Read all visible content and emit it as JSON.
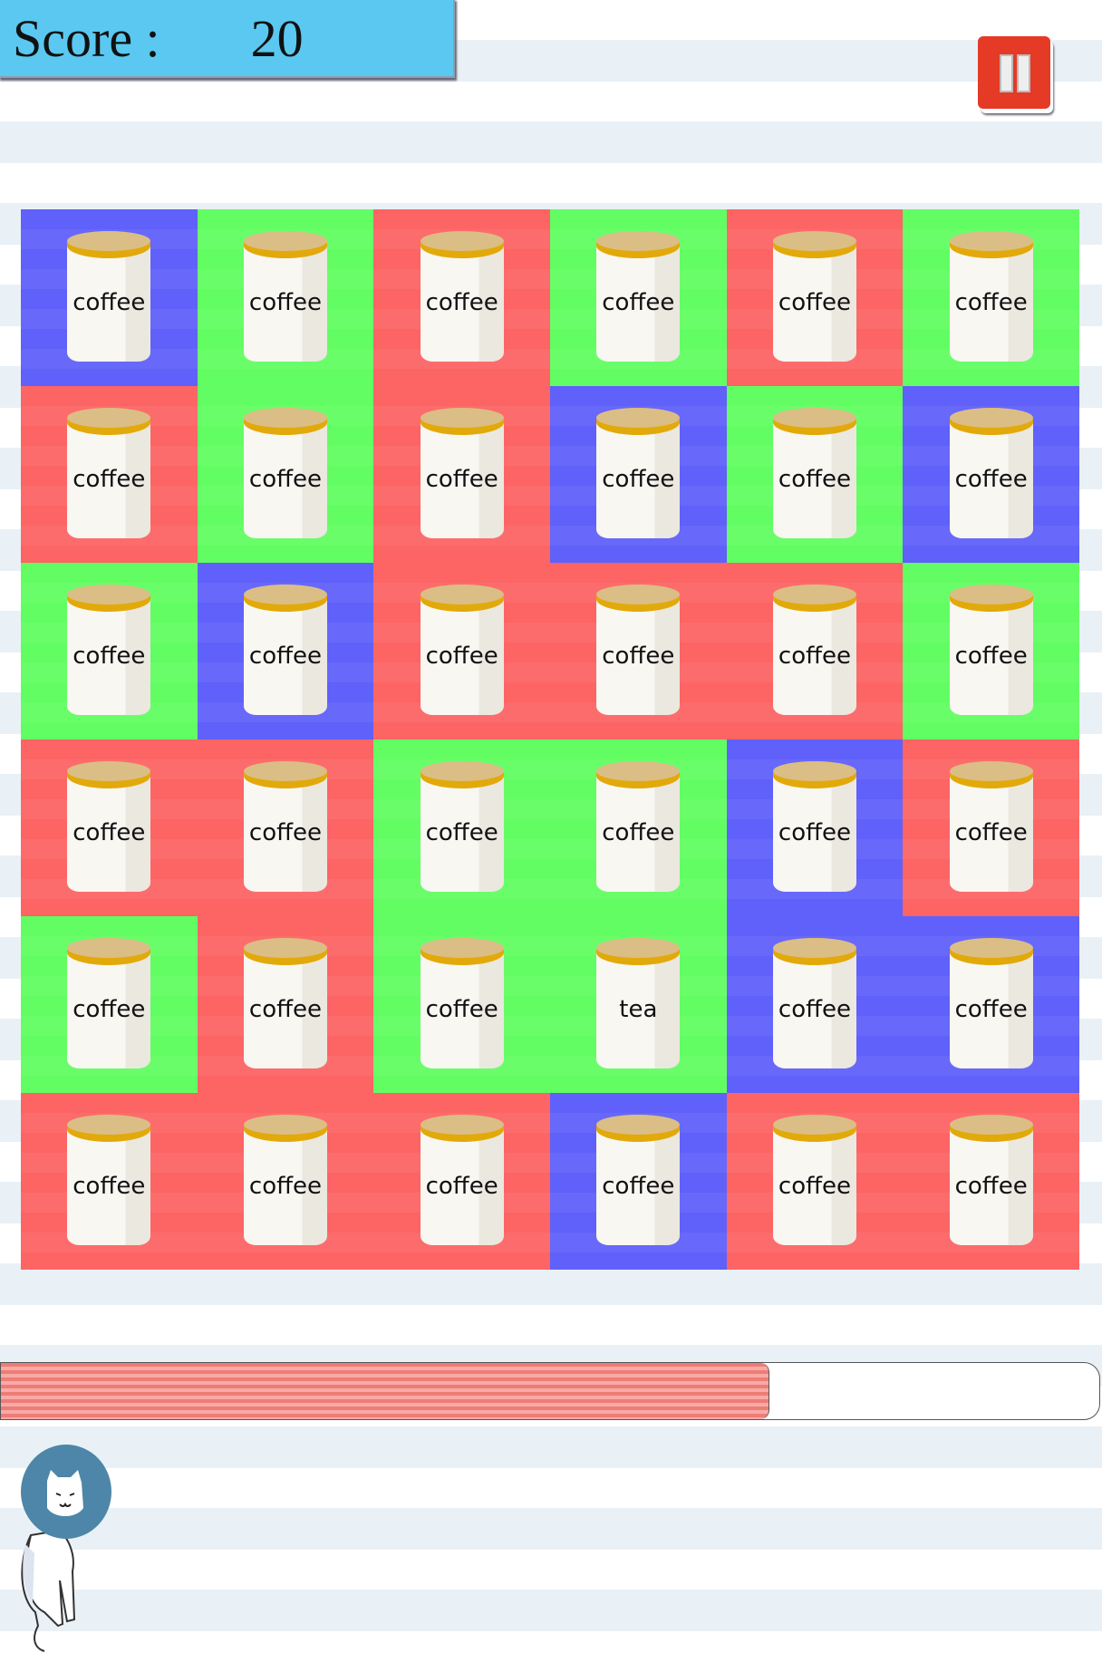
{
  "score": {
    "label": "Score :",
    "value": "20"
  },
  "pause_button": {
    "icon": "pause-icon"
  },
  "colors": {
    "blue": "#6060fa",
    "green": "#62fd62",
    "red": "#fd6464"
  },
  "board": [
    [
      {
        "c": "blue",
        "t": "coffee"
      },
      {
        "c": "green",
        "t": "coffee"
      },
      {
        "c": "red",
        "t": "coffee"
      },
      {
        "c": "green",
        "t": "coffee"
      },
      {
        "c": "red",
        "t": "coffee"
      },
      {
        "c": "green",
        "t": "coffee"
      }
    ],
    [
      {
        "c": "red",
        "t": "coffee"
      },
      {
        "c": "green",
        "t": "coffee"
      },
      {
        "c": "red",
        "t": "coffee"
      },
      {
        "c": "blue",
        "t": "coffee"
      },
      {
        "c": "green",
        "t": "coffee"
      },
      {
        "c": "blue",
        "t": "coffee"
      }
    ],
    [
      {
        "c": "green",
        "t": "coffee"
      },
      {
        "c": "blue",
        "t": "coffee"
      },
      {
        "c": "red",
        "t": "coffee"
      },
      {
        "c": "red",
        "t": "coffee"
      },
      {
        "c": "red",
        "t": "coffee"
      },
      {
        "c": "green",
        "t": "coffee"
      }
    ],
    [
      {
        "c": "red",
        "t": "coffee"
      },
      {
        "c": "red",
        "t": "coffee"
      },
      {
        "c": "green",
        "t": "coffee"
      },
      {
        "c": "green",
        "t": "coffee"
      },
      {
        "c": "blue",
        "t": "coffee"
      },
      {
        "c": "red",
        "t": "coffee"
      }
    ],
    [
      {
        "c": "green",
        "t": "coffee"
      },
      {
        "c": "red",
        "t": "coffee"
      },
      {
        "c": "green",
        "t": "coffee"
      },
      {
        "c": "green",
        "t": "tea"
      },
      {
        "c": "blue",
        "t": "coffee"
      },
      {
        "c": "blue",
        "t": "coffee"
      }
    ],
    [
      {
        "c": "red",
        "t": "coffee"
      },
      {
        "c": "red",
        "t": "coffee"
      },
      {
        "c": "red",
        "t": "coffee"
      },
      {
        "c": "blue",
        "t": "coffee"
      },
      {
        "c": "red",
        "t": "coffee"
      },
      {
        "c": "red",
        "t": "coffee"
      }
    ]
  ],
  "timer_progress": 0.7,
  "mascot": "cat-with-cone"
}
